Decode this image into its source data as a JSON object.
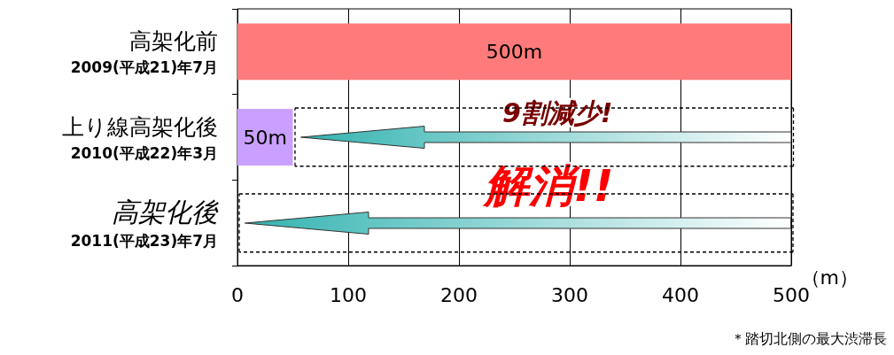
{
  "chart_data": {
    "type": "bar",
    "orientation": "horizontal",
    "categories": [
      "高架化前\n2009(平成21)年7月",
      "上り線高架化後\n2010(平成22)年3月",
      "高架化後\n2011(平成23)年7月"
    ],
    "values": [
      500,
      50,
      0
    ],
    "colors": [
      "#ff7a7a",
      "#c9a0ff",
      null
    ],
    "value_labels": [
      "500m",
      "50m",
      null
    ],
    "xlim": [
      0,
      500
    ],
    "xticks": [
      0,
      100,
      200,
      300,
      400,
      500
    ],
    "xlabel": "（m）",
    "grid": "x",
    "annotations": [
      "9割減少!",
      "解消!!",
      "＊踏切北側の最大渋滞長"
    ]
  }
}
